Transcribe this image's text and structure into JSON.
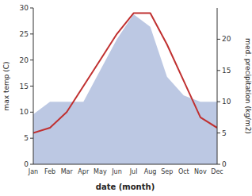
{
  "chart_data": {
    "type": "line",
    "categories": [
      "Jan",
      "Feb",
      "Mar",
      "Apr",
      "May",
      "Jun",
      "Jul",
      "Aug",
      "Sep",
      "Oct",
      "Nov",
      "Dec"
    ],
    "series": [
      {
        "type": "area",
        "axis": "y2",
        "color": "#b0bede",
        "values": [
          8,
          10,
          10,
          10,
          15,
          20,
          24,
          22,
          14,
          11,
          10,
          10
        ]
      },
      {
        "type": "line",
        "color": "#c03030",
        "values": [
          6,
          7,
          10,
          15,
          20,
          25,
          29,
          29,
          23,
          16,
          9,
          7
        ]
      }
    ],
    "xlabel": "date (month)",
    "ylabel": "max temp (C)",
    "y2label": "med. precipitation (kg/m2)",
    "ylim": [
      0,
      30
    ],
    "yticks": [
      0,
      5,
      10,
      15,
      20,
      25,
      30
    ],
    "y2lim": [
      0,
      25
    ],
    "y2ticks": [
      0,
      5,
      10,
      15,
      20
    ]
  }
}
